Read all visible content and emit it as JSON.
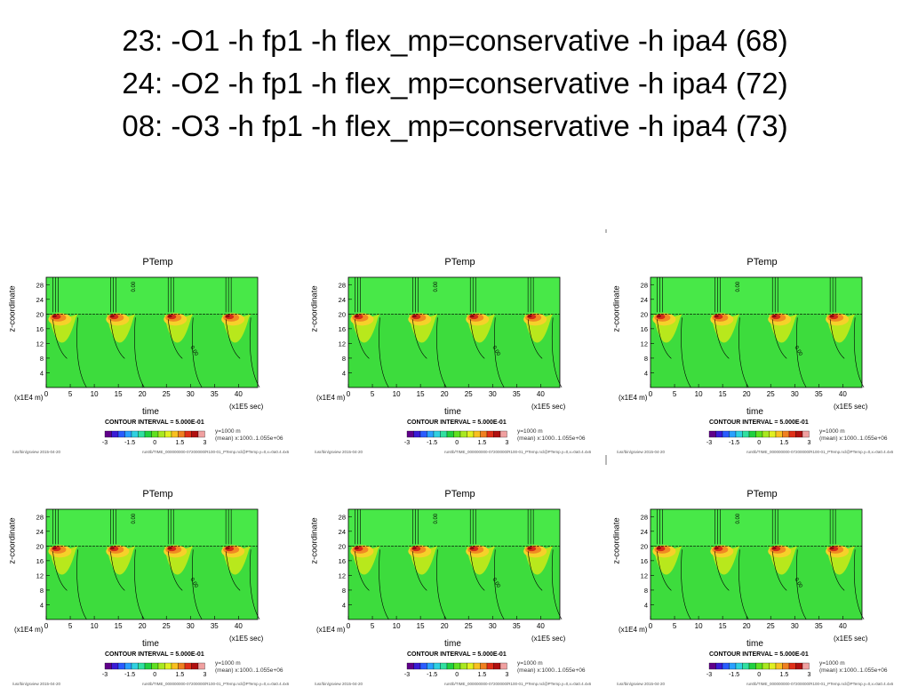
{
  "titles": [
    "23: -O1 -h fp1 -h flex_mp=conservative -h ipa4 (68)",
    "24: -O2 -h fp1 -h flex_mp=conservative -h ipa4 (72)",
    "08: -O3 -h fp1 -h flex_mp=conservative -h ipa4 (73)"
  ],
  "common": {
    "panel_title": "PTemp",
    "ylabel": "z-coordinate",
    "xlabel": "time",
    "x_unit": "(x1E4 m)",
    "x_unit2": "(x1E5 sec)",
    "contour_interval": "CONTOUR INTERVAL = 5.000E-01",
    "y_note": "y=1000  m",
    "mean_note": "(mean) x:1000..1.055e+06",
    "path_label": "/usr/bin/gsview  2015-04-20",
    "run_label": "run0b/TIME_000000000-07200000/R100-01_PTemp.ncl@PTemp.y=0,x=0a0.4.4x6",
    "contour_zero_label": "0.00",
    "cbar_ticks": [
      "-3",
      "-1.5",
      "0",
      "1.5",
      "3"
    ],
    "cbar_colors": [
      "#60008a",
      "#3a1cd6",
      "#2a5cff",
      "#2aa0ff",
      "#30d0e0",
      "#30e0a0",
      "#20d040",
      "#60e020",
      "#a8e820",
      "#e0f020",
      "#f8c020",
      "#f08020",
      "#e03018",
      "#b01010",
      "#f0a0a0"
    ]
  },
  "chart_data": [
    {
      "type": "heatmap",
      "panel": 1,
      "title": "PTemp",
      "xlabel": "time",
      "ylabel": "z-coordinate",
      "x_ticks": [
        0,
        5,
        10,
        15,
        20,
        25,
        30,
        35,
        40
      ],
      "y_ticks": [
        4,
        8,
        12,
        16,
        20,
        24,
        28
      ],
      "xlim": [
        0,
        44
      ],
      "ylim": [
        0,
        30
      ],
      "cell_peaks_x": [
        1,
        13,
        25,
        37
      ]
    },
    {
      "type": "heatmap",
      "panel": 2,
      "title": "PTemp",
      "xlabel": "time",
      "ylabel": "z-coordinate",
      "x_ticks": [
        0,
        5,
        10,
        15,
        20,
        25,
        30,
        35,
        40
      ],
      "y_ticks": [
        4,
        8,
        12,
        16,
        20,
        24,
        28
      ],
      "xlim": [
        0,
        44
      ],
      "ylim": [
        0,
        30
      ],
      "cell_peaks_x": [
        1,
        13,
        25,
        37
      ]
    },
    {
      "type": "heatmap",
      "panel": 3,
      "title": "PTemp",
      "xlabel": "time",
      "ylabel": "z-coordinate",
      "x_ticks": [
        0,
        5,
        10,
        15,
        20,
        25,
        30,
        35,
        40
      ],
      "y_ticks": [
        4,
        8,
        12,
        16,
        20,
        24,
        28
      ],
      "xlim": [
        0,
        44
      ],
      "ylim": [
        0,
        30
      ],
      "cell_peaks_x": [
        1,
        13,
        25,
        37
      ]
    },
    {
      "type": "heatmap",
      "panel": 4,
      "title": "PTemp",
      "xlabel": "time",
      "ylabel": "z-coordinate",
      "x_ticks": [
        0,
        5,
        10,
        15,
        20,
        25,
        30,
        35,
        40
      ],
      "y_ticks": [
        4,
        8,
        12,
        16,
        20,
        24,
        28
      ],
      "xlim": [
        0,
        44
      ],
      "ylim": [
        0,
        30
      ],
      "cell_peaks_x": [
        1,
        13,
        25,
        37
      ]
    },
    {
      "type": "heatmap",
      "panel": 5,
      "title": "PTemp",
      "xlabel": "time",
      "ylabel": "z-coordinate",
      "x_ticks": [
        0,
        5,
        10,
        15,
        20,
        25,
        30,
        35,
        40
      ],
      "y_ticks": [
        4,
        8,
        12,
        16,
        20,
        24,
        28
      ],
      "xlim": [
        0,
        44
      ],
      "ylim": [
        0,
        30
      ],
      "cell_peaks_x": [
        1,
        13,
        25,
        37
      ]
    },
    {
      "type": "heatmap",
      "panel": 6,
      "title": "PTemp",
      "xlabel": "time",
      "ylabel": "z-coordinate",
      "x_ticks": [
        0,
        5,
        10,
        15,
        20,
        25,
        30,
        35,
        40
      ],
      "y_ticks": [
        4,
        8,
        12,
        16,
        20,
        24,
        28
      ],
      "xlim": [
        0,
        44
      ],
      "ylim": [
        0,
        30
      ],
      "cell_peaks_x": [
        1,
        13,
        25,
        37
      ]
    }
  ]
}
